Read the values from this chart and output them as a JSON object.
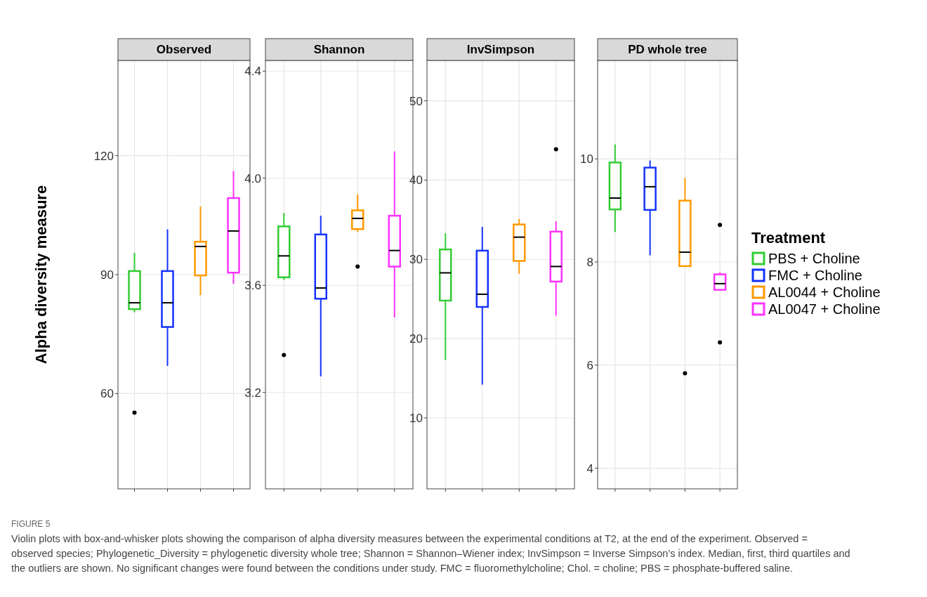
{
  "chart_data": [
    {
      "type": "box",
      "title": "Observed",
      "ylabel": "Alpha diversity measure",
      "categories": [
        null,
        null,
        null,
        null
      ],
      "ylim": [
        36,
        144
      ],
      "yticks": [
        60,
        90,
        120
      ],
      "grid": true,
      "tick_labels": "y",
      "legend": false,
      "series": [
        {
          "color": "#33cc33",
          "boxes": [
            {
              "low": 80.5,
              "q1": 81.3,
              "median": 82.9,
              "q3": 90.9,
              "high": 95.5,
              "outliers": [
                55.2
              ]
            },
            null,
            null,
            null
          ]
        },
        {
          "color": "#1433ff",
          "boxes": [
            null,
            {
              "low": 67,
              "q1": 76.8,
              "median": 82.9,
              "q3": 90.9,
              "high": 101.4
            },
            null,
            null
          ]
        },
        {
          "color": "#ff9900",
          "boxes": [
            null,
            null,
            {
              "low": 84.8,
              "q1": 89.8,
              "median": 97.1,
              "q3": 98.3,
              "high": 107.2
            },
            null
          ]
        },
        {
          "color": "#ff33ff",
          "boxes": [
            null,
            null,
            null,
            {
              "low": 87.7,
              "q1": 90.5,
              "median": 101,
              "q3": 109.3,
              "high": 116.1
            }
          ]
        }
      ],
      "annotations": [
        "FIGURE 5",
        "Violin plots with box-and-whisker plots showing the comparison of alpha diversity measures between the experimental conditions at T2, at the end of the experiment. Observed = observed species; Phylogenetic_Diversity = phylogenetic diversity whole tree; Shannon = Shannon–Wiener index; InvSimpson = Inverse Simpson’s index. Median, first, third quartiles and the outliers are shown. No significant changes were found between the conditions under study. FMC = fluoromethylcholine; Chol. = choline; PBS = phosphate-buffered saline."
      ]
    },
    {
      "type": "box",
      "title": "Shannon",
      "categories": [
        null,
        null,
        null,
        null
      ],
      "ylim": [
        2.84,
        4.44
      ],
      "yticks": [
        {
          "value": 3.2,
          "label": "3.2"
        },
        {
          "value": 3.6,
          "label": "3.6"
        },
        {
          "value": 4.0,
          "label": "4.0"
        },
        {
          "value": 4.4,
          "label": "4.4"
        }
      ],
      "grid": true,
      "tick_labels": "y",
      "legend": false,
      "series": [
        {
          "color": "#33cc33",
          "boxes": [
            {
              "low": 3.62,
              "q1": 3.63,
              "median": 3.71,
              "q3": 3.82,
              "high": 3.87,
              "outliers": [
                3.34
              ]
            },
            null,
            null,
            null
          ]
        },
        {
          "color": "#1433ff",
          "boxes": [
            null,
            {
              "low": 3.26,
              "q1": 3.55,
              "median": 3.59,
              "q3": 3.79,
              "high": 3.86
            },
            null,
            null
          ]
        },
        {
          "color": "#ff9900",
          "boxes": [
            null,
            null,
            {
              "low": 3.8,
              "q1": 3.81,
              "median": 3.85,
              "q3": 3.88,
              "high": 3.94,
              "outliers": [
                3.67
              ]
            },
            null
          ]
        },
        {
          "color": "#ff33ff",
          "boxes": [
            null,
            null,
            null,
            {
              "low": 3.48,
              "q1": 3.67,
              "median": 3.73,
              "q3": 3.86,
              "high": 4.1
            }
          ]
        }
      ]
    },
    {
      "type": "box",
      "title": "InvSimpson",
      "categories": [
        null,
        null,
        null,
        null
      ],
      "ylim": [
        1.05,
        55.1
      ],
      "yticks": [
        10,
        20,
        30,
        40,
        50
      ],
      "grid": true,
      "tick_labels": "y",
      "legend": false,
      "series": [
        {
          "color": "#33cc33",
          "boxes": [
            {
              "low": 17.3,
              "q1": 24.8,
              "median": 28.3,
              "q3": 31.25,
              "high": 33.3
            },
            null,
            null,
            null
          ]
        },
        {
          "color": "#1433ff",
          "boxes": [
            null,
            {
              "low": 14.2,
              "q1": 24,
              "median": 25.6,
              "q3": 31.1,
              "high": 34.1
            },
            null,
            null
          ]
        },
        {
          "color": "#ff9900",
          "boxes": [
            null,
            null,
            {
              "low": 28.2,
              "q1": 29.8,
              "median": 32.8,
              "q3": 34.4,
              "high": 35.1
            },
            null
          ]
        },
        {
          "color": "#ff33ff",
          "boxes": [
            null,
            null,
            null,
            {
              "low": 22.9,
              "q1": 27.2,
              "median": 29.1,
              "q3": 33.5,
              "high": 34.8,
              "outliers": [
                43.9
              ]
            }
          ]
        }
      ]
    },
    {
      "type": "box",
      "title": "PD whole tree",
      "categories": [
        null,
        null,
        null,
        null
      ],
      "ylim": [
        3.6,
        11.91
      ],
      "yticks": [
        4,
        6,
        8,
        10
      ],
      "grid": true,
      "tick_labels": "y",
      "legend": "right",
      "legend_title": "Treatment",
      "series": [
        {
          "name": "PBS + Choline",
          "color": "#33cc33",
          "boxes": [
            {
              "low": 8.58,
              "q1": 9.02,
              "median": 9.24,
              "q3": 9.93,
              "high": 10.28
            },
            null,
            null,
            null
          ]
        },
        {
          "name": "FMC + Choline",
          "color": "#1433ff",
          "boxes": [
            null,
            {
              "low": 8.13,
              "q1": 9.01,
              "median": 9.46,
              "q3": 9.83,
              "high": 9.97
            },
            null,
            null
          ]
        },
        {
          "name": "AL0044 + Choline",
          "color": "#ff9900",
          "boxes": [
            null,
            null,
            {
              "low": 7.92,
              "q1": 7.92,
              "median": 8.19,
              "q3": 9.19,
              "high": 9.63,
              "outliers": [
                5.84
              ]
            },
            null
          ]
        },
        {
          "name": "AL0047 + Choline",
          "color": "#ff33ff",
          "boxes": [
            null,
            null,
            null,
            {
              "low": 7.46,
              "q1": 7.46,
              "median": 7.58,
              "q3": 7.76,
              "high": 7.8,
              "outliers": [
                8.72,
                6.44
              ]
            }
          ]
        }
      ]
    }
  ]
}
